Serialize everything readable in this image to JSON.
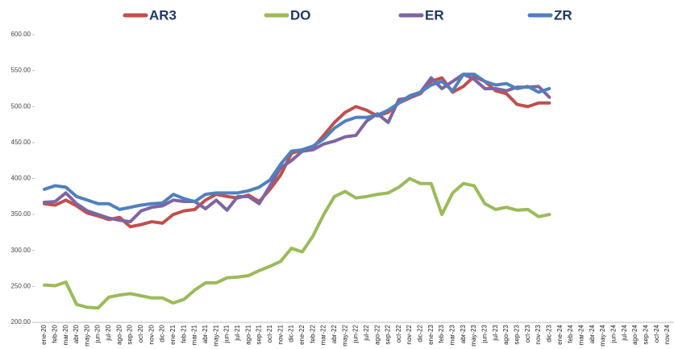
{
  "chart_data": {
    "type": "line",
    "categories": [
      "ene-20",
      "feb-20",
      "mar-20",
      "abr-20",
      "may-20",
      "jun-20",
      "jul-20",
      "ago-20",
      "sep-20",
      "oct-20",
      "nov-20",
      "dic-20",
      "ene-21",
      "feb-21",
      "mar-21",
      "abr-21",
      "may-21",
      "jun-21",
      "jul-21",
      "ago-21",
      "sep-21",
      "oct-21",
      "nov-21",
      "dic-21",
      "ene-22",
      "feb-22",
      "mar-22",
      "abr-22",
      "may-22",
      "jun-22",
      "jul-22",
      "ago-22",
      "sep-22",
      "oct-22",
      "nov-22",
      "dic-22",
      "ene-23",
      "feb-23",
      "mar-23",
      "abr-23",
      "may-23",
      "jun-23",
      "jul-23",
      "ago-23",
      "sep-23",
      "oct-23",
      "nov-23",
      "dic-23",
      "ene-24",
      "feb-24",
      "mar-24",
      "abr-24",
      "may-24",
      "jun-24",
      "jul-24",
      "ago-24",
      "sep-24",
      "oct-24",
      "nov-24"
    ],
    "series": [
      {
        "name": "AR3",
        "color": "#c0504d",
        "values": [
          365,
          363,
          370,
          362,
          352,
          348,
          343,
          346,
          333,
          336,
          340,
          338,
          350,
          355,
          357,
          370,
          378,
          375,
          373,
          377,
          368,
          385,
          405,
          435,
          440,
          443,
          460,
          478,
          492,
          500,
          495,
          487,
          492,
          505,
          512,
          518,
          535,
          540,
          520,
          528,
          542,
          535,
          522,
          518,
          503,
          500,
          505,
          505,
          null,
          null,
          null,
          null,
          null,
          null,
          null,
          null,
          null,
          null,
          null
        ]
      },
      {
        "name": "DO",
        "color": "#9bbb59",
        "values": [
          252,
          251,
          256,
          225,
          221,
          220,
          235,
          238,
          240,
          237,
          234,
          234,
          227,
          232,
          245,
          255,
          255,
          262,
          263,
          265,
          272,
          278,
          285,
          303,
          298,
          320,
          350,
          375,
          382,
          373,
          375,
          378,
          380,
          388,
          400,
          393,
          393,
          350,
          380,
          393,
          390,
          365,
          357,
          360,
          356,
          357,
          347,
          350,
          null,
          null,
          null,
          null,
          null,
          null,
          null,
          null,
          null,
          null,
          null
        ]
      },
      {
        "name": "ER",
        "color": "#8064a2",
        "values": [
          367,
          368,
          380,
          365,
          355,
          350,
          345,
          342,
          340,
          355,
          360,
          362,
          370,
          368,
          368,
          358,
          370,
          356,
          375,
          375,
          365,
          390,
          415,
          425,
          438,
          440,
          448,
          452,
          458,
          460,
          480,
          490,
          478,
          510,
          512,
          520,
          540,
          525,
          535,
          545,
          538,
          525,
          525,
          522,
          527,
          527,
          528,
          513,
          null,
          null,
          null,
          null,
          null,
          null,
          null,
          null,
          null,
          null,
          null
        ]
      },
      {
        "name": "ZR",
        "color": "#4f81bd",
        "values": [
          385,
          390,
          388,
          375,
          370,
          365,
          365,
          357,
          360,
          363,
          365,
          366,
          378,
          372,
          368,
          378,
          380,
          380,
          380,
          383,
          388,
          398,
          420,
          438,
          440,
          445,
          455,
          470,
          480,
          485,
          485,
          488,
          495,
          505,
          515,
          520,
          530,
          535,
          522,
          545,
          545,
          535,
          530,
          532,
          525,
          528,
          520,
          525,
          null,
          null,
          null,
          null,
          null,
          null,
          null,
          null,
          null,
          null,
          null
        ]
      }
    ],
    "ylim": [
      200,
      600
    ],
    "yticks": [
      {
        "value": 200,
        "label": "200.00"
      },
      {
        "value": 250,
        "label": "250.00"
      },
      {
        "value": 300,
        "label": "300.00"
      },
      {
        "value": 350,
        "label": "350.00"
      },
      {
        "value": 400,
        "label": "400.00"
      },
      {
        "value": 450,
        "label": "450.00"
      },
      {
        "value": 500,
        "label": "500.00"
      },
      {
        "value": 550,
        "label": "550.00"
      },
      {
        "value": 600,
        "label": "600.00"
      }
    ],
    "legend": "top"
  }
}
